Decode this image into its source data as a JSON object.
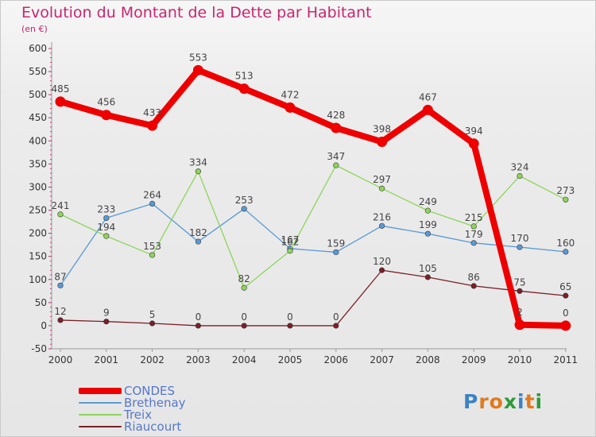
{
  "title": "Evolution du Montant de la Dette par Habitant",
  "unit_label": "(en €)",
  "logo": {
    "letters": [
      "P",
      "r",
      "o",
      "x",
      "i",
      "t",
      "i"
    ],
    "colors": [
      "#3b82c4",
      "#e07a1f",
      "#e07a1f",
      "#2f9a3a",
      "#3b82c4",
      "#e07a1f",
      "#2f9a3a"
    ]
  },
  "chart_data": {
    "type": "line",
    "x": [
      "2000",
      "2001",
      "2002",
      "2003",
      "2004",
      "2005",
      "2006",
      "2007",
      "2008",
      "2009",
      "2010",
      "2011"
    ],
    "ylim": [
      -50,
      600
    ],
    "yticks": [
      "-50",
      "0",
      "50",
      "100",
      "150",
      "200",
      "250",
      "300",
      "350",
      "400",
      "450",
      "500",
      "550",
      "600"
    ],
    "grid": false,
    "legend_position": "bottom-left",
    "series": [
      {
        "name": "Riaucourt",
        "color": "#7a1f28",
        "values": [
          12,
          9,
          5,
          0,
          0,
          0,
          0,
          120,
          105,
          86,
          75,
          65
        ],
        "labels": [
          "12",
          "9",
          "5",
          "0",
          "0",
          "0",
          "0",
          "120",
          "105",
          "86",
          "75",
          "65"
        ]
      },
      {
        "name": "Brethenay",
        "color": "#5a9ad4",
        "values": [
          87,
          233,
          264,
          182,
          253,
          167,
          159,
          216,
          199,
          179,
          170,
          160
        ],
        "labels": [
          "87",
          "233",
          "264",
          "182",
          "253",
          "167",
          "159",
          "216",
          "199",
          "179",
          "170",
          "160"
        ]
      },
      {
        "name": "Treix",
        "color": "#8ed45a",
        "values": [
          241,
          194,
          153,
          334,
          82,
          162,
          347,
          297,
          249,
          215,
          324,
          273
        ],
        "labels": [
          "241",
          "194",
          "153",
          "334",
          "82",
          "162",
          "347",
          "297",
          "249",
          "215",
          "324",
          "273"
        ]
      },
      {
        "name": "CONDES",
        "color": "#ee0000",
        "values": [
          485,
          456,
          433,
          553,
          513,
          472,
          428,
          398,
          467,
          394,
          2,
          0
        ],
        "labels": [
          "485",
          "456",
          "433",
          "553",
          "513",
          "472",
          "428",
          "398",
          "467",
          "394",
          "2",
          "0"
        ]
      }
    ],
    "legend": [
      {
        "name": "CONDES",
        "color": "#ee0000"
      },
      {
        "name": "Brethenay",
        "color": "#5a9ad4"
      },
      {
        "name": "Treix",
        "color": "#8ed45a"
      },
      {
        "name": "Riaucourt",
        "color": "#7a1f28"
      }
    ]
  }
}
